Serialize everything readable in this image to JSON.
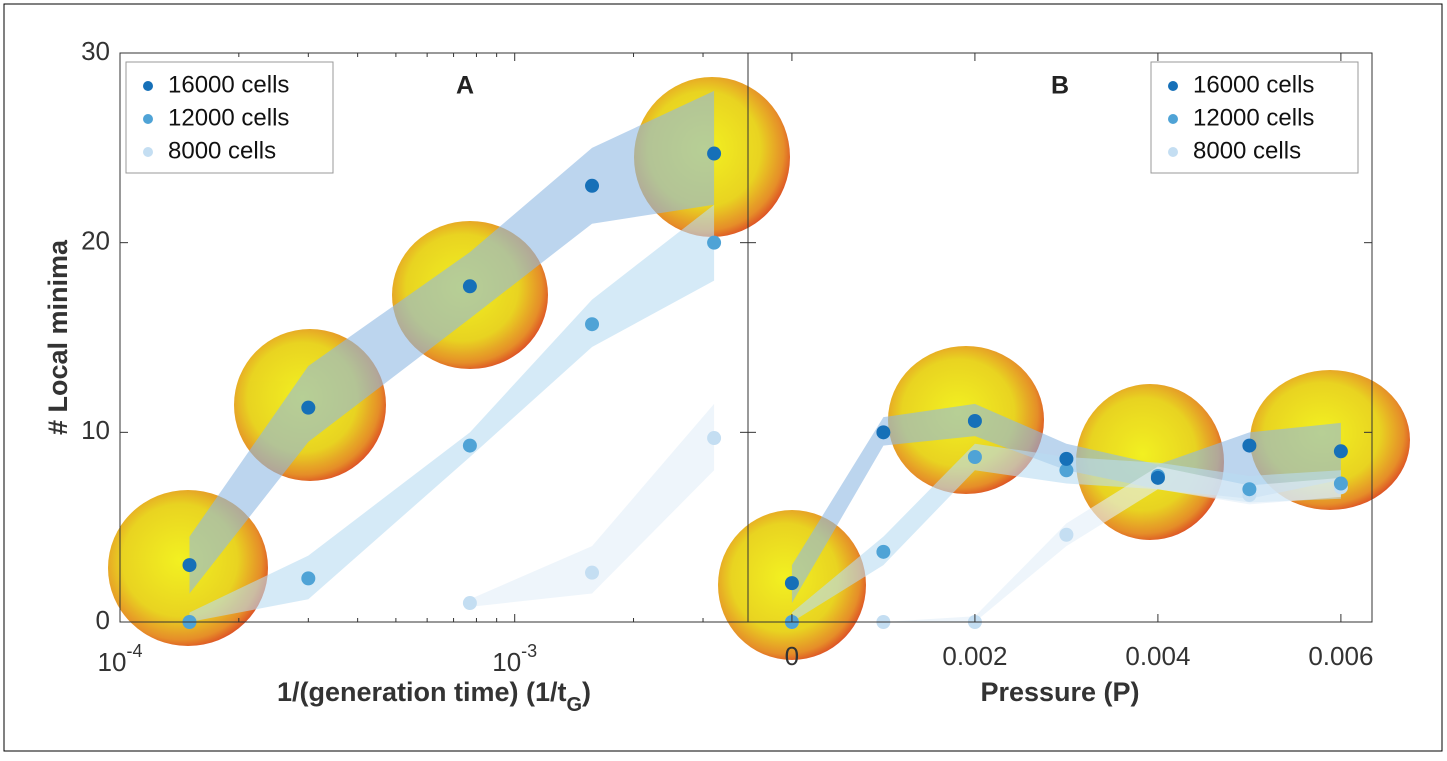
{
  "chart_data": [
    {
      "type": "scatter",
      "panel_label": "A",
      "xscale": "log",
      "xlabel": {
        "text": "1/(generation time) (1/t",
        "subscript": "G",
        "suffix": ")"
      },
      "ylabel": "# Local minima",
      "x": [
        0.00015,
        0.0003,
        0.00077,
        0.00157,
        0.0032
      ],
      "xlim": [
        0.0001,
        0.0039
      ],
      "xticks": [
        {
          "value": 0.0001,
          "label": "10",
          "exponent": "-4"
        },
        {
          "value": 0.001,
          "label": "10",
          "exponent": "-3"
        }
      ],
      "xminorticks": [
        0.0002,
        0.0003,
        0.0004,
        0.0005,
        0.0006,
        0.0007,
        0.0008,
        0.0009,
        0.002,
        0.003
      ],
      "ylim": [
        0,
        30
      ],
      "yticks": [
        0,
        10,
        20,
        30
      ],
      "legend": "upper left",
      "series": [
        {
          "name": "16000 cells",
          "color": "#1670b8",
          "band_color": "#8fb9e2",
          "values": [
            3.0,
            11.3,
            17.7,
            23.0,
            24.7
          ],
          "lower": [
            1.5,
            9.5,
            16.0,
            21.0,
            22.0
          ],
          "upper": [
            4.5,
            13.5,
            19.5,
            25.0,
            28.0
          ]
        },
        {
          "name": "12000 cells",
          "color": "#4fa3d6",
          "band_color": "#b9dcf2",
          "values": [
            0,
            2.3,
            9.3,
            15.7,
            20.0
          ],
          "lower": [
            0,
            1.2,
            8.7,
            14.5,
            18.0
          ],
          "upper": [
            0.5,
            3.5,
            10.0,
            17.0,
            22.0
          ]
        },
        {
          "name": "8000 cells",
          "color": "#c4def2",
          "band_color": "#e2eef9",
          "values": [
            null,
            null,
            1.0,
            2.6,
            9.7
          ],
          "lower": [
            null,
            null,
            0.8,
            1.5,
            8.0
          ],
          "upper": [
            null,
            null,
            1.2,
            4.0,
            11.5
          ]
        }
      ]
    },
    {
      "type": "scatter",
      "panel_label": "B",
      "xscale": "linear",
      "xlabel": {
        "text": "Pressure (P)"
      },
      "x": [
        0,
        0.001,
        0.002,
        0.003,
        0.004,
        0.005,
        0.006
      ],
      "xlim": [
        -0.00048,
        0.00634
      ],
      "xticks": [
        0,
        0.002,
        0.004,
        0.006
      ],
      "ylim": [
        0,
        30
      ],
      "yticks": [
        0,
        10,
        20,
        30
      ],
      "legend": "upper right",
      "series": [
        {
          "name": "16000 cells",
          "color": "#1670b8",
          "band_color": "#8fb9e2",
          "values": [
            2.05,
            10.0,
            10.6,
            8.6,
            7.6,
            9.3,
            9.0
          ],
          "lower": [
            1.0,
            9.3,
            9.8,
            8.0,
            7.0,
            6.5,
            7.5
          ],
          "upper": [
            3.0,
            10.8,
            11.5,
            9.4,
            8.3,
            10.0,
            10.5
          ]
        },
        {
          "name": "12000 cells",
          "color": "#4fa3d6",
          "band_color": "#b9dcf2",
          "values": [
            0,
            3.7,
            8.7,
            8.0,
            7.7,
            7.0,
            7.3
          ],
          "lower": [
            0,
            3.0,
            8.0,
            7.3,
            7.0,
            6.3,
            6.5
          ],
          "upper": [
            0.5,
            4.5,
            9.4,
            8.7,
            8.4,
            7.7,
            8.0
          ]
        },
        {
          "name": "8000 cells",
          "color": "#c4def2",
          "band_color": "#e2eef9",
          "values": [
            0,
            0,
            0,
            4.6,
            7.6,
            6.7,
            7.1
          ],
          "lower": [
            0,
            0,
            0,
            4.0,
            7.0,
            6.2,
            6.6
          ],
          "upper": [
            0,
            0,
            0.3,
            5.2,
            8.2,
            7.2,
            7.6
          ]
        }
      ]
    }
  ]
}
